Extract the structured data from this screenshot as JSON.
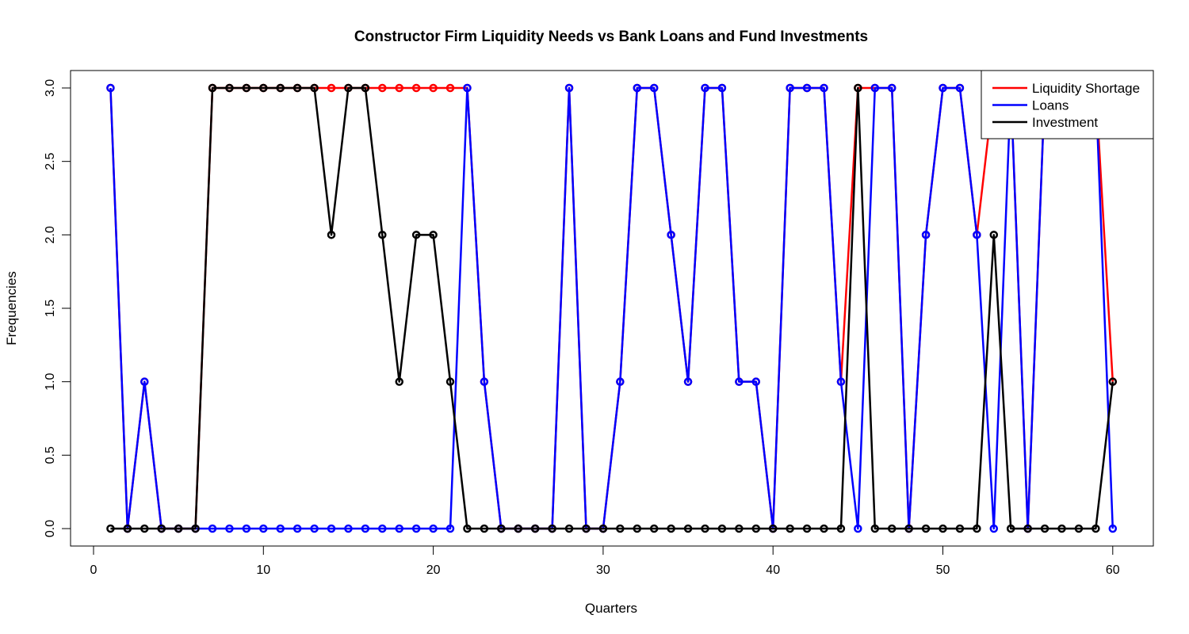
{
  "chart_data": {
    "type": "line",
    "title": "Constructor Firm Liquidity Needs vs Bank Loans and Fund Investments",
    "xlabel": "Quarters",
    "ylabel": "Frequencies",
    "xlim": [
      1,
      60
    ],
    "ylim": [
      0,
      3
    ],
    "x_ticks": [
      "0",
      "10",
      "20",
      "30",
      "40",
      "50",
      "60"
    ],
    "y_ticks": [
      "0.0",
      "0.5",
      "1.0",
      "1.5",
      "2.0",
      "2.5",
      "3.0"
    ],
    "grid": false,
    "legend_position": "top-right",
    "x": [
      1,
      2,
      3,
      4,
      5,
      6,
      7,
      8,
      9,
      10,
      11,
      12,
      13,
      14,
      15,
      16,
      17,
      18,
      19,
      20,
      21,
      22,
      23,
      24,
      25,
      26,
      27,
      28,
      29,
      30,
      31,
      32,
      33,
      34,
      35,
      36,
      37,
      38,
      39,
      40,
      41,
      42,
      43,
      44,
      45,
      46,
      47,
      48,
      49,
      50,
      51,
      52,
      53,
      54,
      55,
      56,
      57,
      58,
      59,
      60
    ],
    "series": [
      {
        "name": "Liquidity Shortage",
        "color": "#ff0000",
        "values": [
          3,
          0,
          1,
          0,
          0,
          0,
          3,
          3,
          3,
          3,
          3,
          3,
          3,
          3,
          3,
          3,
          3,
          3,
          3,
          3,
          3,
          3,
          1,
          0,
          0,
          0,
          0,
          3,
          0,
          0,
          1,
          3,
          3,
          2,
          1,
          3,
          3,
          1,
          1,
          0,
          3,
          3,
          3,
          1,
          3,
          3,
          3,
          0,
          2,
          3,
          3,
          2,
          3,
          3,
          0,
          3,
          3,
          3,
          3,
          1
        ]
      },
      {
        "name": "Loans",
        "color": "#0000ff",
        "values": [
          3,
          0,
          1,
          0,
          0,
          0,
          0,
          0,
          0,
          0,
          0,
          0,
          0,
          0,
          0,
          0,
          0,
          0,
          0,
          0,
          0,
          3,
          1,
          0,
          0,
          0,
          0,
          3,
          0,
          0,
          1,
          3,
          3,
          2,
          1,
          3,
          3,
          1,
          1,
          0,
          3,
          3,
          3,
          1,
          0,
          3,
          3,
          0,
          2,
          3,
          3,
          2,
          0,
          3,
          0,
          3,
          3,
          3,
          3,
          0
        ]
      },
      {
        "name": "Investment",
        "color": "#000000",
        "values": [
          0,
          0,
          0,
          0,
          0,
          0,
          3,
          3,
          3,
          3,
          3,
          3,
          3,
          2,
          3,
          3,
          2,
          1,
          2,
          2,
          1,
          0,
          0,
          0,
          0,
          0,
          0,
          0,
          0,
          0,
          0,
          0,
          0,
          0,
          0,
          0,
          0,
          0,
          0,
          0,
          0,
          0,
          0,
          0,
          3,
          0,
          0,
          0,
          0,
          0,
          0,
          0,
          2,
          0,
          0,
          0,
          0,
          0,
          0,
          1
        ]
      }
    ]
  }
}
